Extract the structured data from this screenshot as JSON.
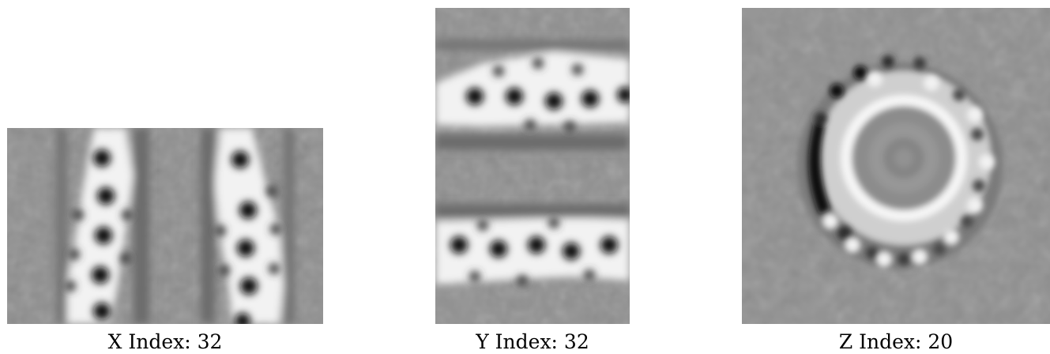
{
  "panels": [
    {
      "label": "X Index: 32"
    },
    {
      "label": "Y Index: 32"
    },
    {
      "label": "Z Index: 20"
    }
  ],
  "colors": {
    "background": "#ffffff",
    "grey_mid": "#8c8c8c",
    "grey_light": "#b4b4b4",
    "white_ring": "#f4f4f4",
    "black_dot": "#0a0a0a"
  }
}
